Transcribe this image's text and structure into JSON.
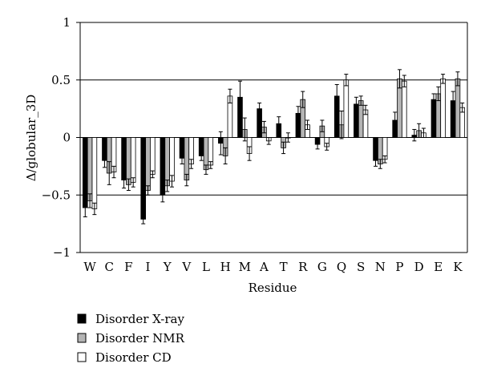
{
  "chart_data": {
    "type": "bar",
    "xlabel": "Residue",
    "ylabel": "Δ/globular_3D",
    "ylim": [
      -1,
      1
    ],
    "yticks": [
      {
        "value": 1,
        "label": "1"
      },
      {
        "value": 0.5,
        "label": "0.5"
      },
      {
        "value": 0,
        "label": "0"
      },
      {
        "value": -0.5,
        "label": "−0.5"
      },
      {
        "value": -1,
        "label": "−1"
      }
    ],
    "gridlines": [
      0.5,
      0,
      -0.5
    ],
    "legend_position": "bottom-left",
    "categories": [
      "W",
      "C",
      "F",
      "I",
      "Y",
      "V",
      "L",
      "H",
      "M",
      "A",
      "T",
      "R",
      "G",
      "Q",
      "S",
      "N",
      "P",
      "D",
      "E",
      "K"
    ],
    "series": [
      {
        "name": "Disorder X-ray",
        "color": "#000000",
        "values": [
          -0.61,
          -0.2,
          -0.37,
          -0.71,
          -0.5,
          -0.18,
          -0.16,
          -0.05,
          0.35,
          0.25,
          0.12,
          0.21,
          -0.06,
          0.36,
          0.29,
          -0.2,
          0.15,
          0.02,
          0.33,
          0.32
        ],
        "errors": [
          0.08,
          0.06,
          0.07,
          0.04,
          0.06,
          0.05,
          0.04,
          0.1,
          0.14,
          0.05,
          0.06,
          0.06,
          0.04,
          0.1,
          0.06,
          0.05,
          0.07,
          0.05,
          0.05,
          0.08
        ]
      },
      {
        "name": "Disorder NMR",
        "color": "#b4b4b4",
        "values": [
          -0.55,
          -0.31,
          -0.41,
          -0.46,
          -0.42,
          -0.37,
          -0.28,
          -0.16,
          0.07,
          0.09,
          -0.09,
          0.33,
          0.1,
          0.11,
          0.32,
          -0.23,
          0.51,
          0.06,
          0.38,
          0.51
        ],
        "errors": [
          0.06,
          0.1,
          0.05,
          0.04,
          0.05,
          0.05,
          0.04,
          0.07,
          0.1,
          0.05,
          0.05,
          0.07,
          0.05,
          0.12,
          0.04,
          0.04,
          0.08,
          0.06,
          0.06,
          0.06
        ]
      },
      {
        "name": "Disorder CD",
        "color": "#ffffff",
        "values": [
          -0.62,
          -0.3,
          -0.39,
          -0.32,
          -0.38,
          -0.23,
          -0.24,
          0.36,
          -0.14,
          -0.03,
          0.0,
          0.11,
          -0.08,
          0.5,
          0.24,
          -0.19,
          0.49,
          0.04,
          0.51,
          0.26
        ],
        "errors": [
          0.05,
          0.05,
          0.04,
          0.03,
          0.05,
          0.04,
          0.03,
          0.06,
          0.06,
          0.03,
          0.04,
          0.04,
          0.03,
          0.05,
          0.04,
          0.03,
          0.05,
          0.04,
          0.04,
          0.04
        ]
      }
    ]
  }
}
